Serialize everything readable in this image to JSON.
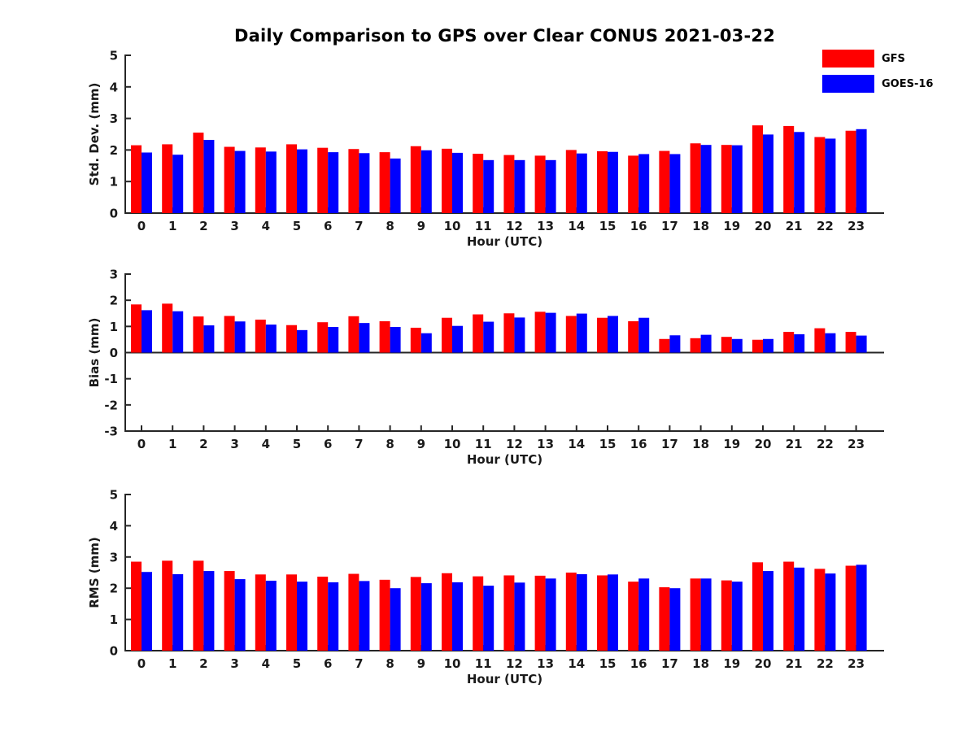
{
  "title": "Daily Comparison to GPS over Clear CONUS 2021-03-22",
  "legend": {
    "entries": [
      {
        "label": "GFS",
        "color": "#ff0000"
      },
      {
        "label": "GOES-16",
        "color": "#0000ff"
      }
    ]
  },
  "colors": {
    "gfs": "#ff0000",
    "goes16": "#0000ff",
    "axis": "#262626",
    "text": "#1a1a1a"
  },
  "chart_data": [
    {
      "type": "bar",
      "title": "Std. Dev. panel",
      "ylabel": "Std. Dev. (mm)",
      "xlabel": "Hour (UTC)",
      "ylim": [
        0,
        5
      ],
      "yticks": [
        0,
        1,
        2,
        3,
        4,
        5
      ],
      "grid": false,
      "legend_position": "top-right",
      "categories": [
        "0",
        "1",
        "2",
        "3",
        "4",
        "5",
        "6",
        "7",
        "8",
        "9",
        "10",
        "11",
        "12",
        "13",
        "14",
        "15",
        "16",
        "17",
        "18",
        "19",
        "20",
        "21",
        "22",
        "23"
      ],
      "series": [
        {
          "name": "GFS",
          "color": "#ff0000",
          "values": [
            2.15,
            2.18,
            2.55,
            2.1,
            2.08,
            2.18,
            2.07,
            2.03,
            1.93,
            2.12,
            2.04,
            1.88,
            1.84,
            1.82,
            2.0,
            1.96,
            1.82,
            1.97,
            2.21,
            2.16,
            2.78,
            2.76,
            2.41,
            2.61
          ]
        },
        {
          "name": "GOES-16",
          "color": "#0000ff",
          "values": [
            1.92,
            1.85,
            2.32,
            1.97,
            1.95,
            2.02,
            1.93,
            1.9,
            1.73,
            1.99,
            1.91,
            1.68,
            1.68,
            1.68,
            1.89,
            1.94,
            1.87,
            1.87,
            2.16,
            2.15,
            2.49,
            2.57,
            2.36,
            2.66
          ]
        }
      ]
    },
    {
      "type": "bar",
      "title": "Bias panel",
      "ylabel": "Bias (mm)",
      "xlabel": "Hour (UTC)",
      "ylim": [
        -3,
        3
      ],
      "yticks": [
        -3,
        -2,
        -1,
        0,
        1,
        2,
        3
      ],
      "grid": false,
      "categories": [
        "0",
        "1",
        "2",
        "3",
        "4",
        "5",
        "6",
        "7",
        "8",
        "9",
        "10",
        "11",
        "12",
        "13",
        "14",
        "15",
        "16",
        "17",
        "18",
        "19",
        "20",
        "21",
        "22",
        "23"
      ],
      "series": [
        {
          "name": "GFS",
          "color": "#ff0000",
          "values": [
            1.84,
            1.87,
            1.38,
            1.4,
            1.26,
            1.05,
            1.16,
            1.39,
            1.2,
            0.95,
            1.33,
            1.46,
            1.5,
            1.56,
            1.4,
            1.33,
            1.2,
            0.52,
            0.55,
            0.6,
            0.49,
            0.79,
            0.93,
            0.79
          ]
        },
        {
          "name": "GOES-16",
          "color": "#0000ff",
          "values": [
            1.62,
            1.58,
            1.04,
            1.19,
            1.07,
            0.86,
            0.98,
            1.13,
            0.98,
            0.74,
            1.02,
            1.18,
            1.34,
            1.52,
            1.49,
            1.4,
            1.33,
            0.66,
            0.68,
            0.52,
            0.52,
            0.7,
            0.74,
            0.65
          ]
        }
      ]
    },
    {
      "type": "bar",
      "title": "RMS panel",
      "ylabel": "RMS (mm)",
      "xlabel": "Hour (UTC)",
      "ylim": [
        0,
        5
      ],
      "yticks": [
        0,
        1,
        2,
        3,
        4,
        5
      ],
      "grid": false,
      "categories": [
        "0",
        "1",
        "2",
        "3",
        "4",
        "5",
        "6",
        "7",
        "8",
        "9",
        "10",
        "11",
        "12",
        "13",
        "14",
        "15",
        "16",
        "17",
        "18",
        "19",
        "20",
        "21",
        "22",
        "23"
      ],
      "series": [
        {
          "name": "GFS",
          "color": "#ff0000",
          "values": [
            2.85,
            2.88,
            2.88,
            2.55,
            2.44,
            2.44,
            2.37,
            2.46,
            2.27,
            2.36,
            2.48,
            2.38,
            2.41,
            2.4,
            2.5,
            2.41,
            2.21,
            2.03,
            2.31,
            2.25,
            2.83,
            2.85,
            2.62,
            2.72
          ]
        },
        {
          "name": "GOES-16",
          "color": "#0000ff",
          "values": [
            2.52,
            2.45,
            2.55,
            2.29,
            2.24,
            2.21,
            2.19,
            2.23,
            2.0,
            2.16,
            2.19,
            2.08,
            2.18,
            2.31,
            2.45,
            2.44,
            2.31,
            2.0,
            2.31,
            2.21,
            2.55,
            2.66,
            2.47,
            2.75
          ]
        }
      ]
    }
  ]
}
